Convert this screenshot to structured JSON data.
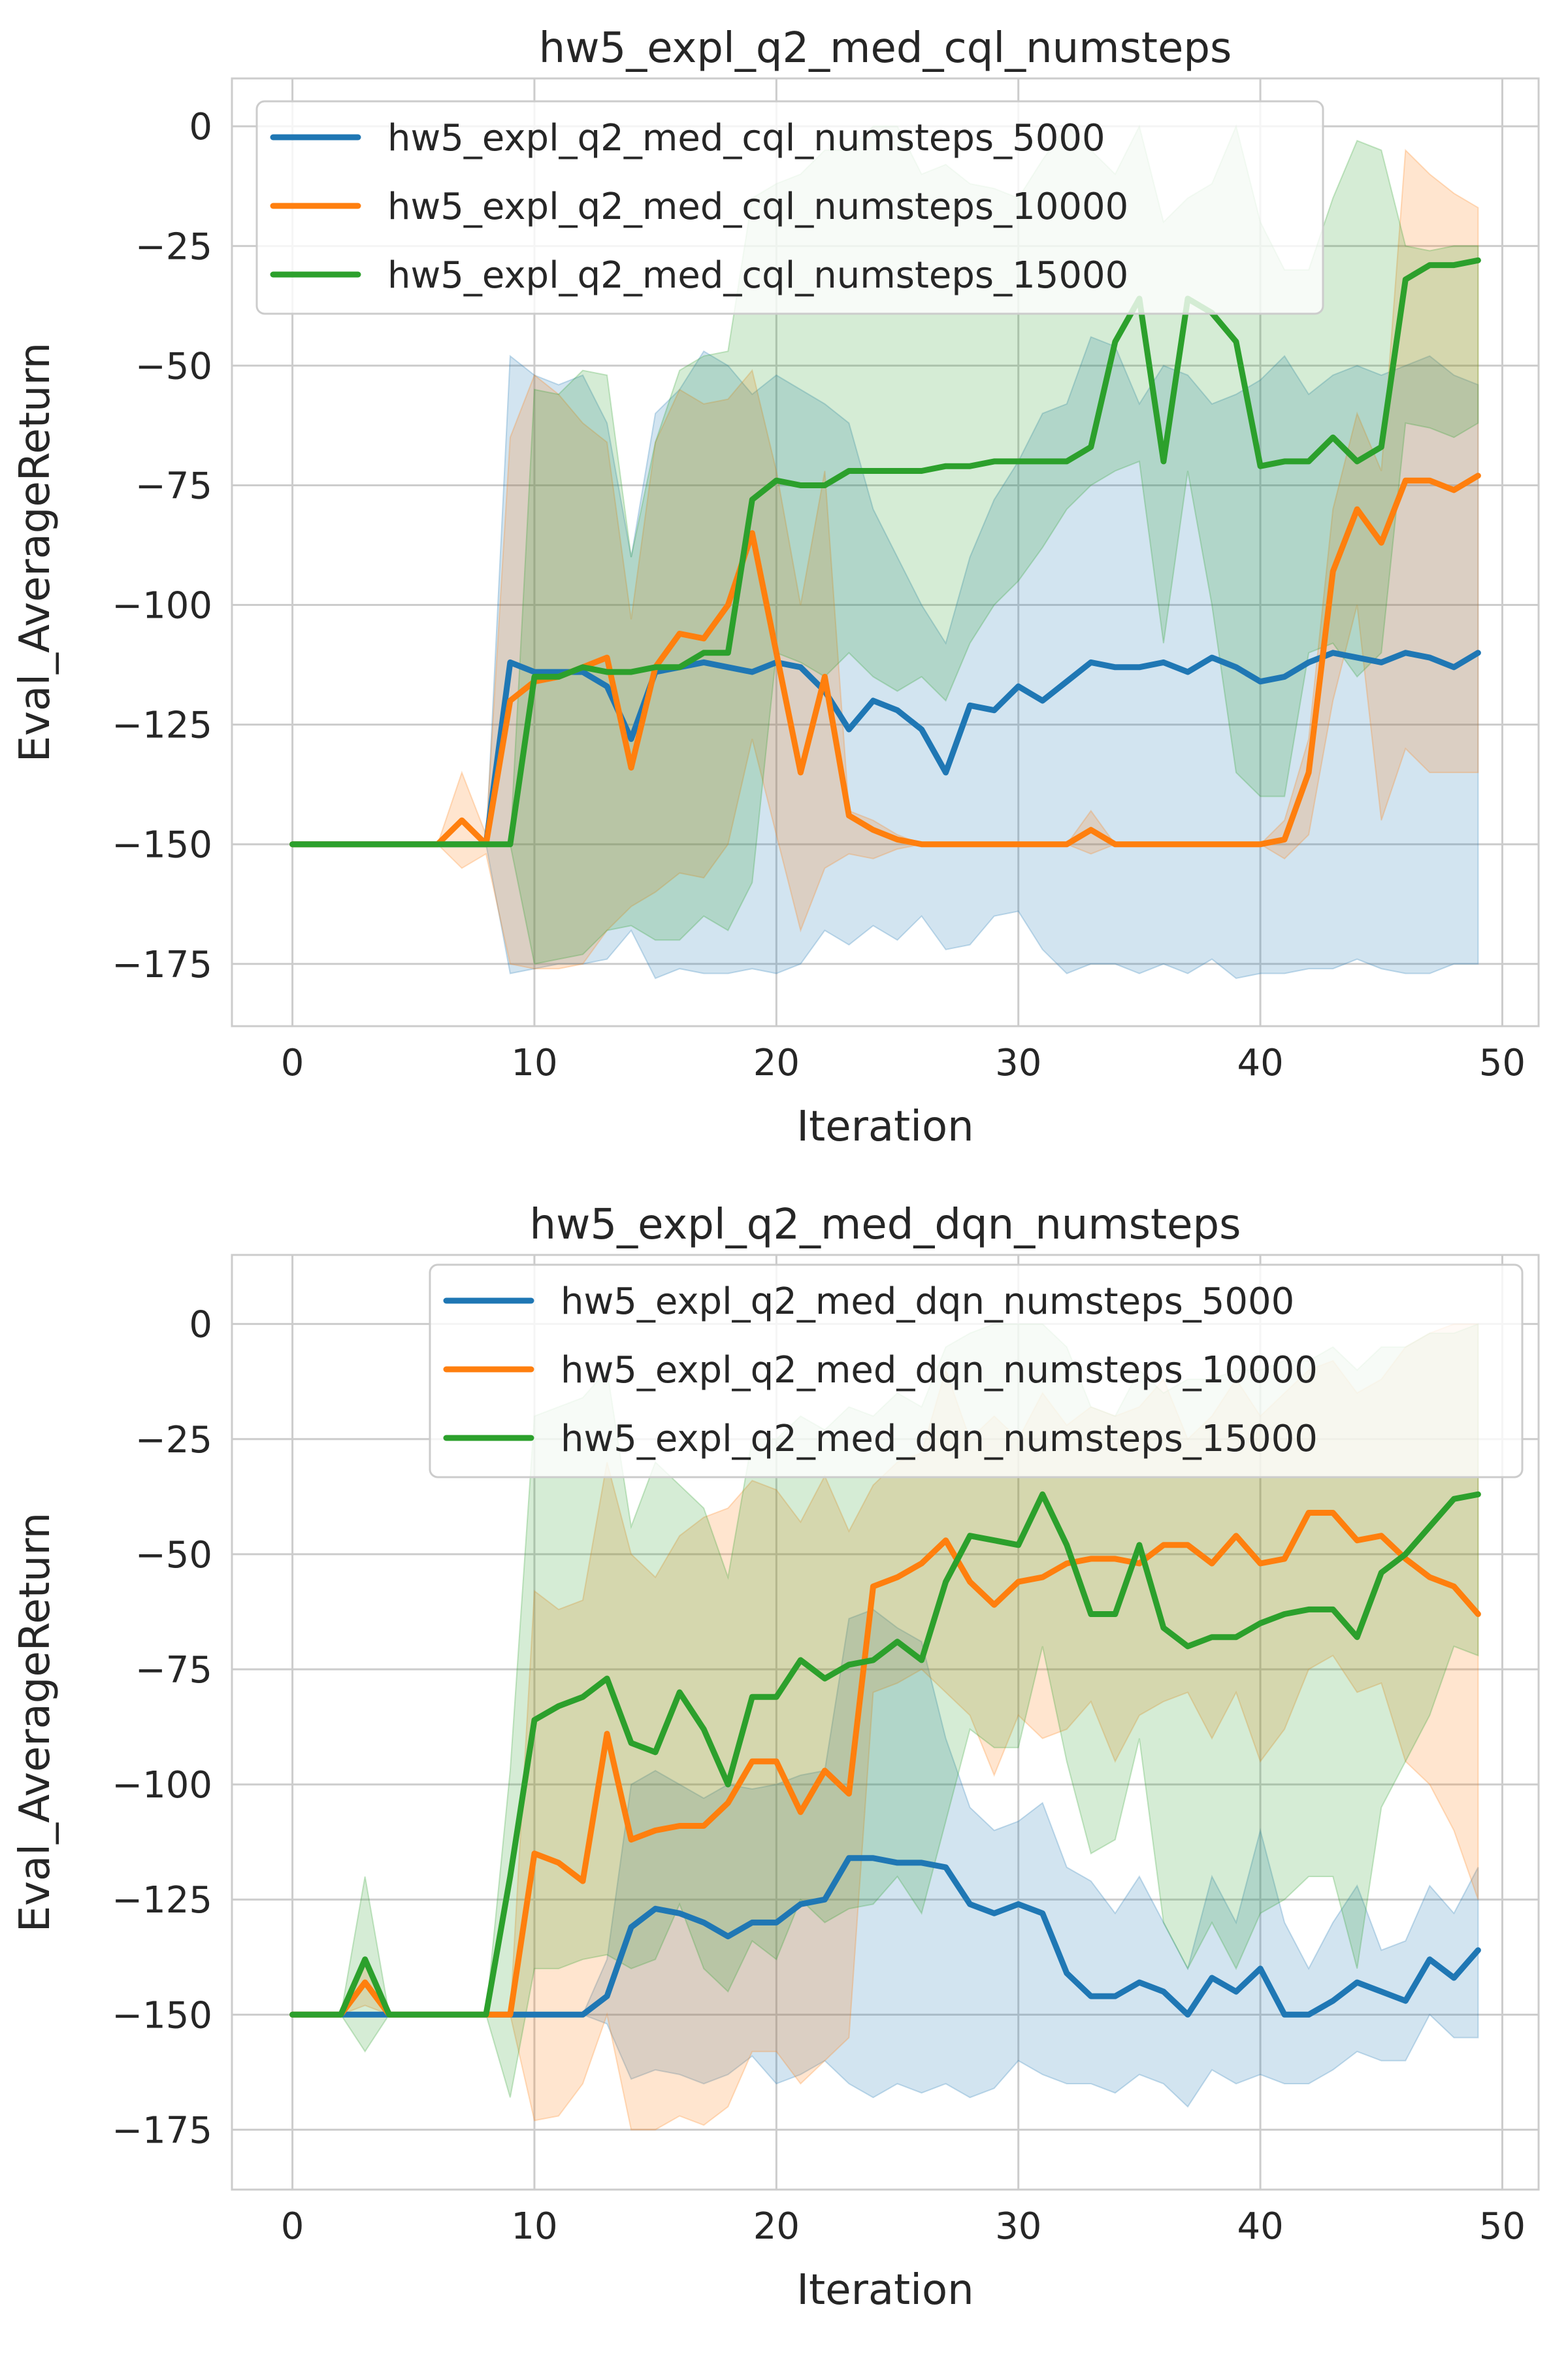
{
  "chart_data": [
    {
      "type": "line",
      "title": "hw5_expl_q2_med_cql_numsteps",
      "xlabel": "Iteration",
      "ylabel": "Eval_AverageReturn",
      "xlim": [
        -2.5,
        51.5
      ],
      "ylim": [
        -188,
        10
      ],
      "xticks": [
        0,
        10,
        20,
        30,
        40,
        50
      ],
      "yticks": [
        0,
        -25,
        -50,
        -75,
        -100,
        -125,
        -150,
        -175
      ],
      "ytick_labels": [
        "0",
        "−25",
        "−50",
        "−75",
        "−100",
        "−125",
        "−150",
        "−175"
      ],
      "grid": true,
      "legend_position": "top-left",
      "series": [
        {
          "name": "hw5_expl_q2_med_cql_numsteps_5000",
          "color": "#1f77b4",
          "values": [
            -150,
            -150,
            -150,
            -150,
            -150,
            -150,
            -150,
            -150,
            -150,
            -112,
            -114,
            -114,
            -114,
            -117,
            -128,
            -114,
            -113,
            -112,
            -113,
            -114,
            -112,
            -113,
            -118,
            -126,
            -120,
            -122,
            -126,
            -135,
            -121,
            -122,
            -117,
            -120,
            -116,
            -112,
            -113,
            -113,
            -112,
            -114,
            -111,
            -113,
            -116,
            -115,
            -112,
            -110,
            -111,
            -112,
            -110,
            -111,
            -113,
            -110
          ],
          "band_upper": [
            -150,
            -150,
            -150,
            -150,
            -150,
            -150,
            -150,
            -150,
            -150,
            -48,
            -52,
            -54,
            -52,
            -62,
            -90,
            -60,
            -55,
            -47,
            -50,
            -56,
            -52,
            -55,
            -58,
            -62,
            -80,
            -90,
            -100,
            -108,
            -90,
            -78,
            -70,
            -60,
            -58,
            -44,
            -46,
            -58,
            -50,
            -52,
            -58,
            -56,
            -53,
            -48,
            -56,
            -52,
            -50,
            -52,
            -50,
            -48,
            -52,
            -54
          ],
          "band_lower": [
            -150,
            -150,
            -150,
            -150,
            -150,
            -150,
            -150,
            -150,
            -150,
            -177,
            -176,
            -175,
            -175,
            -174,
            -168,
            -178,
            -176,
            -177,
            -177,
            -176,
            -177,
            -175,
            -168,
            -171,
            -167,
            -170,
            -165,
            -172,
            -171,
            -165,
            -164,
            -172,
            -177,
            -175,
            -175,
            -177,
            -175,
            -177,
            -174,
            -178,
            -177,
            -177,
            -176,
            -176,
            -174,
            -176,
            -177,
            -177,
            -175,
            -175
          ]
        },
        {
          "name": "hw5_expl_q2_med_cql_numsteps_10000",
          "color": "#ff7f0e",
          "values": [
            -150,
            -150,
            -150,
            -150,
            -150,
            -150,
            -150,
            -145,
            -150,
            -120,
            -116,
            -115,
            -113,
            -111,
            -134,
            -113,
            -106,
            -107,
            -100,
            -85,
            -110,
            -135,
            -115,
            -144,
            -147,
            -149,
            -150,
            -150,
            -150,
            -150,
            -150,
            -150,
            -150,
            -147,
            -150,
            -150,
            -150,
            -150,
            -150,
            -150,
            -150,
            -149,
            -135,
            -93,
            -80,
            -87,
            -74,
            -74,
            -76,
            -73
          ],
          "band_upper": [
            -150,
            -150,
            -150,
            -150,
            -150,
            -150,
            -150,
            -135,
            -148,
            -65,
            -52,
            -56,
            -62,
            -66,
            -103,
            -66,
            -55,
            -58,
            -57,
            -51,
            -72,
            -100,
            -72,
            -143,
            -145,
            -148,
            -150,
            -150,
            -150,
            -150,
            -150,
            -150,
            -150,
            -143,
            -150,
            -150,
            -150,
            -150,
            -150,
            -150,
            -150,
            -145,
            -128,
            -80,
            -60,
            -72,
            -5,
            -10,
            -14,
            -17
          ],
          "band_lower": [
            -150,
            -150,
            -150,
            -150,
            -150,
            -150,
            -150,
            -155,
            -152,
            -175,
            -176,
            -176,
            -175,
            -168,
            -163,
            -160,
            -156,
            -157,
            -150,
            -128,
            -148,
            -168,
            -155,
            -152,
            -153,
            -151,
            -150,
            -150,
            -150,
            -150,
            -150,
            -150,
            -150,
            -152,
            -150,
            -150,
            -150,
            -150,
            -150,
            -150,
            -150,
            -153,
            -148,
            -120,
            -100,
            -145,
            -130,
            -135,
            -135,
            -135
          ]
        },
        {
          "name": "hw5_expl_q2_med_cql_numsteps_15000",
          "color": "#2ca02c",
          "values": [
            -150,
            -150,
            -150,
            -150,
            -150,
            -150,
            -150,
            -150,
            -150,
            -150,
            -115,
            -115,
            -113,
            -114,
            -114,
            -113,
            -113,
            -110,
            -110,
            -78,
            -74,
            -75,
            -75,
            -72,
            -72,
            -72,
            -72,
            -71,
            -71,
            -70,
            -70,
            -70,
            -70,
            -67,
            -45,
            -36,
            -70,
            -36,
            -39,
            -45,
            -71,
            -70,
            -70,
            -65,
            -70,
            -67,
            -32,
            -29,
            -29,
            -28
          ],
          "band_upper": [
            -150,
            -150,
            -150,
            -150,
            -150,
            -150,
            -150,
            -150,
            -150,
            -150,
            -55,
            -56,
            -51,
            -52,
            -90,
            -66,
            -51,
            -48,
            -47,
            -15,
            -12,
            -10,
            -5,
            -5,
            0,
            0,
            -10,
            -8,
            -12,
            -13,
            -15,
            -7,
            0,
            -5,
            -10,
            0,
            -20,
            -15,
            -12,
            0,
            -20,
            -30,
            -30,
            -15,
            -3,
            -5,
            -25,
            -26,
            -25,
            -25
          ],
          "band_lower": [
            -150,
            -150,
            -150,
            -150,
            -150,
            -150,
            -150,
            -150,
            -150,
            -150,
            -175,
            -174,
            -173,
            -168,
            -167,
            -170,
            -170,
            -165,
            -168,
            -158,
            -110,
            -112,
            -115,
            -110,
            -115,
            -118,
            -115,
            -120,
            -108,
            -100,
            -95,
            -88,
            -80,
            -75,
            -72,
            -70,
            -108,
            -72,
            -100,
            -135,
            -140,
            -140,
            -110,
            -108,
            -115,
            -110,
            -62,
            -63,
            -65,
            -62
          ]
        }
      ]
    },
    {
      "type": "line",
      "title": "hw5_expl_q2_med_dqn_numsteps",
      "xlabel": "Iteration",
      "ylabel": "Eval_AverageReturn",
      "xlim": [
        -2.5,
        51.5
      ],
      "ylim": [
        -188,
        15
      ],
      "xticks": [
        0,
        10,
        20,
        30,
        40,
        50
      ],
      "yticks": [
        0,
        -25,
        -50,
        -75,
        -100,
        -125,
        -150,
        -175
      ],
      "ytick_labels": [
        "0",
        "−25",
        "−50",
        "−75",
        "−100",
        "−125",
        "−150",
        "−175"
      ],
      "grid": true,
      "legend_position": "top-right",
      "series": [
        {
          "name": "hw5_expl_q2_med_dqn_numsteps_5000",
          "color": "#1f77b4",
          "values": [
            -150,
            -150,
            -150,
            -150,
            -150,
            -150,
            -150,
            -150,
            -150,
            -150,
            -150,
            -150,
            -150,
            -146,
            -131,
            -127,
            -128,
            -130,
            -133,
            -130,
            -130,
            -126,
            -125,
            -116,
            -116,
            -117,
            -117,
            -118,
            -126,
            -128,
            -126,
            -128,
            -141,
            -146,
            -146,
            -143,
            -145,
            -150,
            -142,
            -145,
            -140,
            -150,
            -150,
            -147,
            -143,
            -145,
            -147,
            -138,
            -142,
            -136
          ],
          "band_upper": [
            -150,
            -150,
            -150,
            -150,
            -150,
            -150,
            -150,
            -150,
            -150,
            -150,
            -150,
            -150,
            -150,
            -138,
            -100,
            -97,
            -100,
            -103,
            -100,
            -101,
            -100,
            -98,
            -97,
            -64,
            -62,
            -66,
            -69,
            -90,
            -105,
            -110,
            -108,
            -104,
            -118,
            -121,
            -128,
            -120,
            -130,
            -140,
            -120,
            -130,
            -110,
            -130,
            -140,
            -130,
            -122,
            -136,
            -134,
            -122,
            -128,
            -118
          ],
          "band_lower": [
            -150,
            -150,
            -150,
            -150,
            -150,
            -150,
            -150,
            -150,
            -150,
            -150,
            -150,
            -150,
            -150,
            -152,
            -164,
            -162,
            -163,
            -165,
            -163,
            -159,
            -165,
            -163,
            -160,
            -165,
            -168,
            -165,
            -167,
            -165,
            -168,
            -166,
            -160,
            -163,
            -165,
            -165,
            -167,
            -163,
            -165,
            -170,
            -162,
            -165,
            -163,
            -165,
            -165,
            -162,
            -158,
            -160,
            -160,
            -150,
            -155,
            -155
          ]
        },
        {
          "name": "hw5_expl_q2_med_dqn_numsteps_10000",
          "color": "#ff7f0e",
          "values": [
            -150,
            -150,
            -150,
            -143,
            -150,
            -150,
            -150,
            -150,
            -150,
            -150,
            -115,
            -117,
            -121,
            -89,
            -112,
            -110,
            -109,
            -109,
            -104,
            -95,
            -95,
            -106,
            -97,
            -102,
            -57,
            -55,
            -52,
            -47,
            -56,
            -61,
            -56,
            -55,
            -52,
            -51,
            -51,
            -52,
            -48,
            -48,
            -52,
            -46,
            -52,
            -51,
            -41,
            -41,
            -47,
            -46,
            -51,
            -55,
            -57,
            -63
          ],
          "band_upper": [
            -150,
            -150,
            -150,
            -138,
            -150,
            -150,
            -150,
            -150,
            -150,
            -150,
            -58,
            -62,
            -60,
            -30,
            -50,
            -55,
            -46,
            -42,
            -40,
            -34,
            -36,
            -43,
            -33,
            -45,
            -35,
            -30,
            -28,
            -10,
            -25,
            -20,
            -25,
            -15,
            -22,
            -18,
            -20,
            -18,
            -12,
            -25,
            -20,
            -12,
            -20,
            -15,
            -10,
            -8,
            -15,
            -12,
            -5,
            -2,
            0,
            0
          ],
          "band_lower": [
            -150,
            -150,
            -150,
            -148,
            -150,
            -150,
            -150,
            -150,
            -150,
            -150,
            -173,
            -172,
            -165,
            -150,
            -175,
            -175,
            -172,
            -174,
            -170,
            -158,
            -158,
            -165,
            -160,
            -155,
            -80,
            -78,
            -75,
            -80,
            -85,
            -98,
            -85,
            -90,
            -88,
            -82,
            -95,
            -85,
            -82,
            -80,
            -90,
            -80,
            -95,
            -88,
            -75,
            -72,
            -80,
            -78,
            -95,
            -100,
            -110,
            -125
          ]
        },
        {
          "name": "hw5_expl_q2_med_dqn_numsteps_15000",
          "color": "#2ca02c",
          "values": [
            -150,
            -150,
            -150,
            -138,
            -150,
            -150,
            -150,
            -150,
            -150,
            -120,
            -86,
            -83,
            -81,
            -77,
            -91,
            -93,
            -80,
            -88,
            -100,
            -81,
            -81,
            -73,
            -77,
            -74,
            -73,
            -69,
            -73,
            -56,
            -46,
            -47,
            -48,
            -37,
            -48,
            -63,
            -63,
            -48,
            -66,
            -70,
            -68,
            -68,
            -65,
            -63,
            -62,
            -62,
            -68,
            -54,
            -50,
            -44,
            -38,
            -37
          ],
          "band_upper": [
            -150,
            -150,
            -150,
            -120,
            -150,
            -150,
            -150,
            -150,
            -150,
            -97,
            -20,
            -18,
            -16,
            -10,
            -44,
            -30,
            -35,
            -40,
            -55,
            -25,
            -25,
            -20,
            -23,
            -18,
            -20,
            -15,
            -18,
            -5,
            -2,
            0,
            0,
            0,
            -5,
            -18,
            -20,
            -10,
            -15,
            -12,
            -12,
            -10,
            -10,
            -8,
            -8,
            -5,
            -10,
            -5,
            -5,
            -2,
            -2,
            0
          ],
          "band_lower": [
            -150,
            -150,
            -150,
            -158,
            -150,
            -150,
            -150,
            -150,
            -150,
            -168,
            -140,
            -140,
            -138,
            -137,
            -140,
            -138,
            -126,
            -140,
            -145,
            -134,
            -138,
            -125,
            -130,
            -127,
            -126,
            -120,
            -128,
            -108,
            -88,
            -92,
            -92,
            -70,
            -95,
            -115,
            -112,
            -90,
            -130,
            -140,
            -130,
            -140,
            -128,
            -125,
            -120,
            -120,
            -140,
            -105,
            -95,
            -85,
            -70,
            -72
          ]
        }
      ]
    }
  ]
}
